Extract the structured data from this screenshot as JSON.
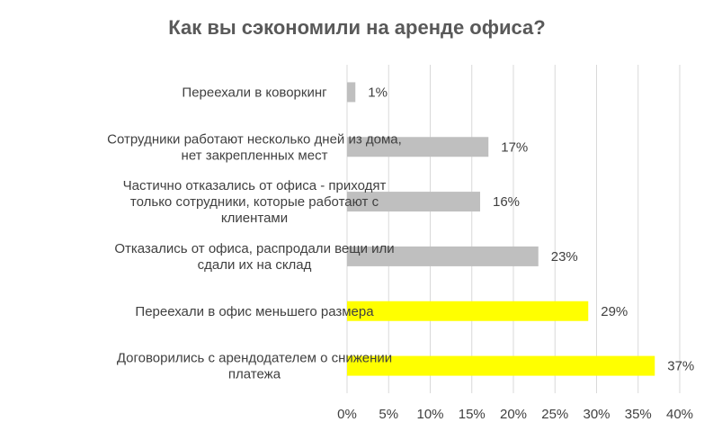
{
  "chart_data": {
    "type": "bar",
    "orientation": "horizontal",
    "title": "Как вы сэкономили на аренде офиса?",
    "xlabel": "",
    "ylabel": "",
    "categories": [
      "Переехали в коворкинг",
      "Сотрудники работают несколько дней из дома, нет закрепленных мест",
      "Частично отказались от офиса - приходят только сотрудники, которые работают с клиентами",
      "Отказались от офиса, распродали вещи или сдали их на склад",
      "Переехали в офис меньшего размера",
      "Договорились с арендодателем о снижении платежа"
    ],
    "category_lines": [
      [
        "Переехали в коворкинг"
      ],
      [
        "Сотрудники работают несколько дней из дома,",
        "нет закрепленных мест"
      ],
      [
        "Частично отказались от офиса - приходят",
        "только сотрудники, которые работают с",
        "клиентами"
      ],
      [
        "Отказались от офиса, распродали вещи или",
        "сдали их на склад"
      ],
      [
        "Переехали в офис меньшего размера"
      ],
      [
        "Договорились с арендодателем о снижении",
        "платежа"
      ]
    ],
    "values": [
      1,
      17,
      16,
      23,
      29,
      37
    ],
    "value_labels": [
      "1%",
      "17%",
      "16%",
      "23%",
      "29%",
      "37%"
    ],
    "bar_colors": [
      "#bfbfbf",
      "#bfbfbf",
      "#bfbfbf",
      "#bfbfbf",
      "#ffff00",
      "#ffff00"
    ],
    "xlim": [
      0,
      40
    ],
    "ticks": [
      0,
      5,
      10,
      15,
      20,
      25,
      30,
      35,
      40
    ],
    "tick_labels": [
      "0%",
      "5%",
      "10%",
      "15%",
      "20%",
      "25%",
      "30%",
      "35%",
      "40%"
    ],
    "grid": true,
    "grid_orientation": "vertical",
    "grid_color": "#d9d9d9",
    "legend": "none"
  }
}
